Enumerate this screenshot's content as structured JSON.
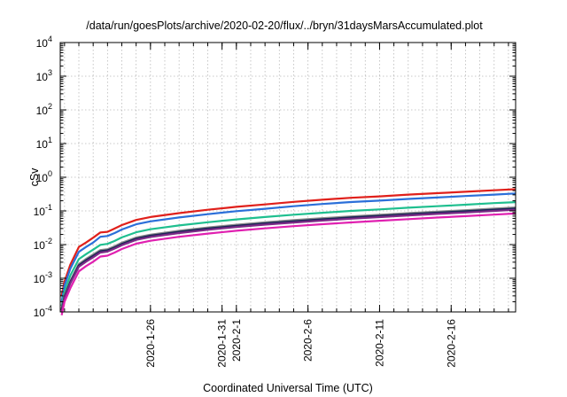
{
  "chart_data": {
    "type": "line",
    "title": "/data/run/goesPlots/archive/2020-02-20/flux/../bryn/31daysMarsAccumulated.plot",
    "xlabel": "Coordinated Universal Time (UTC)",
    "ylabel": "cSv",
    "yscale": "log",
    "ylim": [
      0.0001,
      10000
    ],
    "xlim": [
      -6.3,
      25.5
    ],
    "x_unit": "days from 2020-1-26",
    "grid": true,
    "legend": "none",
    "x_ticks": [
      {
        "label": "2020-1-26",
        "value": 0
      },
      {
        "label": "2020-1-31",
        "value": 5
      },
      {
        "label": "2020-2-1",
        "value": 6
      },
      {
        "label": "2020-2-6",
        "value": 11
      },
      {
        "label": "2020-2-11",
        "value": 16
      },
      {
        "label": "2020-2-16",
        "value": 21
      }
    ],
    "y_ticks": [
      {
        "base": "10",
        "exp": "-4",
        "value": 0.0001
      },
      {
        "base": "10",
        "exp": "-3",
        "value": 0.001
      },
      {
        "base": "10",
        "exp": "-2",
        "value": 0.01
      },
      {
        "base": "10",
        "exp": "-1",
        "value": 0.1
      },
      {
        "base": "10",
        "exp": "0",
        "value": 1
      },
      {
        "base": "10",
        "exp": "1",
        "value": 10
      },
      {
        "base": "10",
        "exp": "2",
        "value": 100
      },
      {
        "base": "10",
        "exp": "3",
        "value": 1000
      },
      {
        "base": "10",
        "exp": "4",
        "value": 10000
      }
    ],
    "x": [
      -6.2,
      -6.0,
      -5.6,
      -5.0,
      -4.5,
      -4.0,
      -3.5,
      -3.0,
      -2.5,
      -2.0,
      -1.0,
      0.0,
      2.0,
      4.0,
      6.0,
      8.0,
      10.0,
      12.0,
      14.0,
      16.0,
      18.0,
      20.0,
      22.0,
      24.0,
      25.5
    ],
    "series": [
      {
        "color": "#e0201b",
        "width": 2.2,
        "values": [
          0.0003,
          0.0008,
          0.0025,
          0.0085,
          0.0115,
          0.016,
          0.023,
          0.024,
          0.03,
          0.038,
          0.054,
          0.066,
          0.086,
          0.108,
          0.132,
          0.156,
          0.185,
          0.214,
          0.245,
          0.27,
          0.305,
          0.335,
          0.37,
          0.41,
          0.44
        ]
      },
      {
        "color": "#2b6fd9",
        "width": 2.2,
        "values": [
          0.0002,
          0.0006,
          0.0019,
          0.0061,
          0.0085,
          0.0115,
          0.017,
          0.018,
          0.022,
          0.028,
          0.04,
          0.049,
          0.064,
          0.08,
          0.098,
          0.116,
          0.138,
          0.16,
          0.183,
          0.202,
          0.226,
          0.25,
          0.277,
          0.305,
          0.33
        ]
      },
      {
        "color": "#1fbf8f",
        "width": 2.2,
        "values": [
          0.00015,
          0.0004,
          0.0012,
          0.0037,
          0.0052,
          0.0071,
          0.0098,
          0.0105,
          0.0128,
          0.0163,
          0.0232,
          0.0285,
          0.037,
          0.046,
          0.056,
          0.066,
          0.077,
          0.088,
          0.1,
          0.111,
          0.124,
          0.138,
          0.153,
          0.17,
          0.182
        ]
      },
      {
        "color": "#8a8a8a",
        "width": 2.6,
        "values": [
          0.00012,
          0.0003,
          0.0008,
          0.0026,
          0.0037,
          0.005,
          0.0068,
          0.0072,
          0.0088,
          0.0112,
          0.016,
          0.0195,
          0.0255,
          0.0318,
          0.0385,
          0.0452,
          0.0525,
          0.06,
          0.068,
          0.076,
          0.0848,
          0.0942,
          0.104,
          0.116,
          0.125
        ]
      },
      {
        "color": "#1a2456",
        "width": 2.4,
        "values": [
          0.00011,
          0.00028,
          0.00075,
          0.0024,
          0.0034,
          0.0046,
          0.0063,
          0.0067,
          0.0082,
          0.0104,
          0.0149,
          0.0182,
          0.0238,
          0.0297,
          0.036,
          0.0422,
          0.049,
          0.056,
          0.0635,
          0.071,
          0.0792,
          0.088,
          0.097,
          0.108,
          0.117
        ]
      },
      {
        "color": "#7b2a86",
        "width": 2.2,
        "values": [
          0.0001,
          0.00026,
          0.0007,
          0.0022,
          0.0031,
          0.0042,
          0.0058,
          0.0062,
          0.0076,
          0.0096,
          0.0138,
          0.0168,
          0.022,
          0.0275,
          0.0333,
          0.039,
          0.0453,
          0.0518,
          0.0587,
          0.0656,
          0.0732,
          0.0814,
          0.0898,
          0.1,
          0.108
        ]
      },
      {
        "color": "#e020b0",
        "width": 2.2,
        "values": [
          8e-05,
          0.0002,
          0.0005,
          0.0016,
          0.0023,
          0.0031,
          0.0044,
          0.0047,
          0.0058,
          0.0074,
          0.0106,
          0.013,
          0.017,
          0.0212,
          0.0258,
          0.0303,
          0.0352,
          0.0402,
          0.0456,
          0.051,
          0.0569,
          0.0633,
          0.0698,
          0.0776,
          0.084
        ]
      }
    ]
  }
}
